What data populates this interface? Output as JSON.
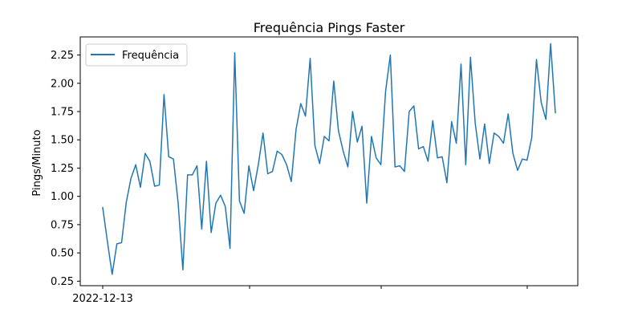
{
  "chart_data": {
    "type": "line",
    "title": "Frequência Pings Faster",
    "xlabel": "",
    "ylabel": "Pings/Minuto",
    "x_tick_labels": [
      "2022-12-13"
    ],
    "ylim": [
      0.21,
      2.41
    ],
    "yticks": [
      0.25,
      0.5,
      0.75,
      1.0,
      1.25,
      1.5,
      1.75,
      2.0,
      2.25
    ],
    "ytick_labels": [
      "0.25",
      "0.50",
      "0.75",
      "1.00",
      "1.25",
      "1.50",
      "1.75",
      "2.00",
      "2.25"
    ],
    "grid": false,
    "legend_position": "upper-left",
    "colors": {
      "line": "#1f77b4",
      "axes": "#000000",
      "background": "#ffffff"
    },
    "series": [
      {
        "name": "Frequência",
        "values": [
          0.9,
          0.6,
          0.31,
          0.58,
          0.59,
          0.95,
          1.16,
          1.28,
          1.08,
          1.38,
          1.31,
          1.09,
          1.1,
          1.9,
          1.35,
          1.33,
          0.94,
          0.35,
          1.19,
          1.19,
          1.27,
          0.71,
          1.31,
          0.68,
          0.94,
          1.01,
          0.91,
          0.54,
          2.27,
          0.96,
          0.85,
          1.27,
          1.05,
          1.28,
          1.56,
          1.2,
          1.22,
          1.4,
          1.37,
          1.28,
          1.13,
          1.59,
          1.82,
          1.71,
          2.22,
          1.45,
          1.29,
          1.53,
          1.49,
          2.02,
          1.58,
          1.4,
          1.26,
          1.75,
          1.48,
          1.62,
          0.94,
          1.53,
          1.34,
          1.28,
          1.93,
          2.25,
          1.26,
          1.27,
          1.22,
          1.75,
          1.8,
          1.42,
          1.44,
          1.31,
          1.67,
          1.34,
          1.35,
          1.12,
          1.66,
          1.47,
          2.17,
          1.28,
          2.23,
          1.65,
          1.33,
          1.64,
          1.29,
          1.56,
          1.53,
          1.47,
          1.73,
          1.38,
          1.23,
          1.33,
          1.32,
          1.52,
          2.21,
          1.83,
          1.68,
          2.35,
          1.74
        ]
      }
    ]
  }
}
